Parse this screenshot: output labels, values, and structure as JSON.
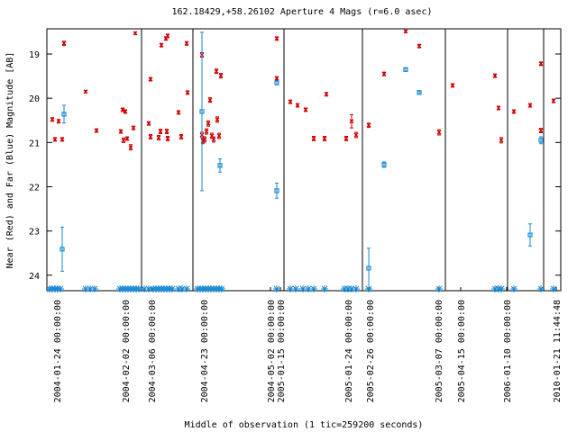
{
  "chart_data": {
    "type": "scatter",
    "title": "162.18429,+58.26102   Aperture 4 Mags (r=6.0 asec)",
    "xlabel": "Middle of observation (1 tic=259200 seconds)",
    "ylabel": "Near (Red) and Far (Blue) Magnitude [AB]",
    "xlim": [
      0,
      570
    ],
    "ylim": [
      18.43,
      24.35
    ],
    "y_inverted": true,
    "yticks": [
      19,
      20,
      21,
      22,
      23,
      24
    ],
    "xticks": [
      {
        "value": 11,
        "label": "2004-01-24 00:00:00"
      },
      {
        "value": 87,
        "label": "2004-02-02 00:00:00"
      },
      {
        "value": 116,
        "label": "2004-03-06 00:00:00"
      },
      {
        "value": 174,
        "label": "2004-04-23 00:00:00"
      },
      {
        "value": 248,
        "label": "2004-05-02 00:00:00"
      },
      {
        "value": 259,
        "label": "2005-01-15 00:00:00"
      },
      {
        "value": 334,
        "label": "2005-01-24 00:00:00"
      },
      {
        "value": 358,
        "label": "2005-02-26 00:00:00"
      },
      {
        "value": 434,
        "label": "2005-03-07 00:00:00"
      },
      {
        "value": 459,
        "label": "2005-04-15 00:00:00"
      },
      {
        "value": 510,
        "label": "2006-01-10 00:00:00"
      },
      {
        "value": 565,
        "label": "2010-01-21 11:44:48"
      }
    ],
    "breaks": [
      105,
      162,
      263,
      350,
      442,
      511,
      551
    ],
    "series": [
      {
        "color": "#d00000",
        "x": [
          6,
          9,
          13,
          17,
          19,
          43,
          55,
          82,
          84,
          87,
          85,
          89,
          93,
          96,
          98,
          113,
          115,
          115,
          124,
          126,
          127,
          132,
          133,
          134,
          134,
          146,
          149,
          155,
          156,
          172,
          172,
          173,
          175,
          177,
          179,
          181,
          183,
          185,
          188,
          189,
          191,
          193,
          255,
          255,
          270,
          278,
          287,
          296,
          308,
          310,
          332,
          338,
          343,
          357,
          374,
          398,
          413,
          435,
          450,
          497,
          501,
          504,
          518,
          536,
          548,
          548,
          562
        ],
        "values": [
          20.48,
          20.93,
          20.52,
          20.93,
          18.76,
          19.85,
          20.73,
          20.75,
          20.26,
          20.3,
          20.95,
          20.91,
          21.11,
          20.67,
          18.53,
          20.57,
          19.57,
          20.87,
          20.89,
          20.75,
          18.8,
          18.65,
          20.75,
          18.59,
          20.91,
          20.32,
          20.87,
          18.76,
          19.87,
          19.02,
          20.83,
          20.97,
          20.93,
          20.75,
          20.57,
          20.04,
          20.85,
          20.93,
          19.39,
          20.48,
          20.85,
          19.49,
          18.65,
          19.55,
          20.08,
          20.16,
          20.26,
          20.91,
          20.91,
          19.91,
          20.91,
          20.52,
          20.83,
          20.61,
          19.45,
          18.49,
          18.82,
          20.77,
          19.71,
          19.49,
          20.22,
          20.95,
          20.3,
          20.16,
          20.73,
          19.22,
          20.06
        ],
        "errors": [
          0.04,
          0.04,
          0.04,
          0.04,
          0.05,
          0.03,
          0.04,
          0.04,
          0.04,
          0.04,
          0.05,
          0.04,
          0.06,
          0.04,
          0.03,
          0.04,
          0.04,
          0.05,
          0.05,
          0.05,
          0.04,
          0.04,
          0.05,
          0.04,
          0.05,
          0.04,
          0.05,
          0.04,
          0.04,
          0.05,
          0.06,
          0.06,
          0.06,
          0.06,
          0.06,
          0.05,
          0.06,
          0.06,
          0.05,
          0.06,
          0.06,
          0.05,
          0.04,
          0.04,
          0.04,
          0.04,
          0.04,
          0.05,
          0.05,
          0.04,
          0.05,
          0.15,
          0.06,
          0.05,
          0.04,
          0.03,
          0.04,
          0.06,
          0.04,
          0.04,
          0.04,
          0.06,
          0.04,
          0.04,
          0.05,
          0.04,
          0.04
        ]
      },
      {
        "color": "#1a8ad4",
        "x": [
          19,
          17,
          172,
          192,
          255,
          255,
          357,
          374,
          398,
          413,
          536,
          548
        ],
        "values": [
          20.36,
          23.41,
          20.3,
          21.52,
          22.09,
          19.65,
          23.84,
          21.5,
          19.35,
          19.87,
          23.09,
          20.95
        ],
        "errors": [
          0.2,
          0.5,
          1.79,
          0.15,
          0.17,
          0.04,
          0.45,
          0.06,
          0.04,
          0.03,
          0.25,
          0.08
        ]
      }
    ],
    "bottom_markers": {
      "color": "#1a8ad4",
      "x": [
        3,
        6,
        9,
        12,
        15,
        43,
        48,
        53,
        81,
        84,
        87,
        90,
        93,
        96,
        99,
        102,
        108,
        113,
        118,
        121,
        124,
        127,
        130,
        133,
        136,
        139,
        146,
        150,
        155,
        167,
        170,
        173,
        176,
        179,
        182,
        185,
        188,
        191,
        194,
        255,
        270,
        276,
        284,
        290,
        296,
        308,
        330,
        334,
        338,
        343,
        357,
        435,
        497,
        501,
        504,
        518,
        548,
        562
      ]
    }
  }
}
